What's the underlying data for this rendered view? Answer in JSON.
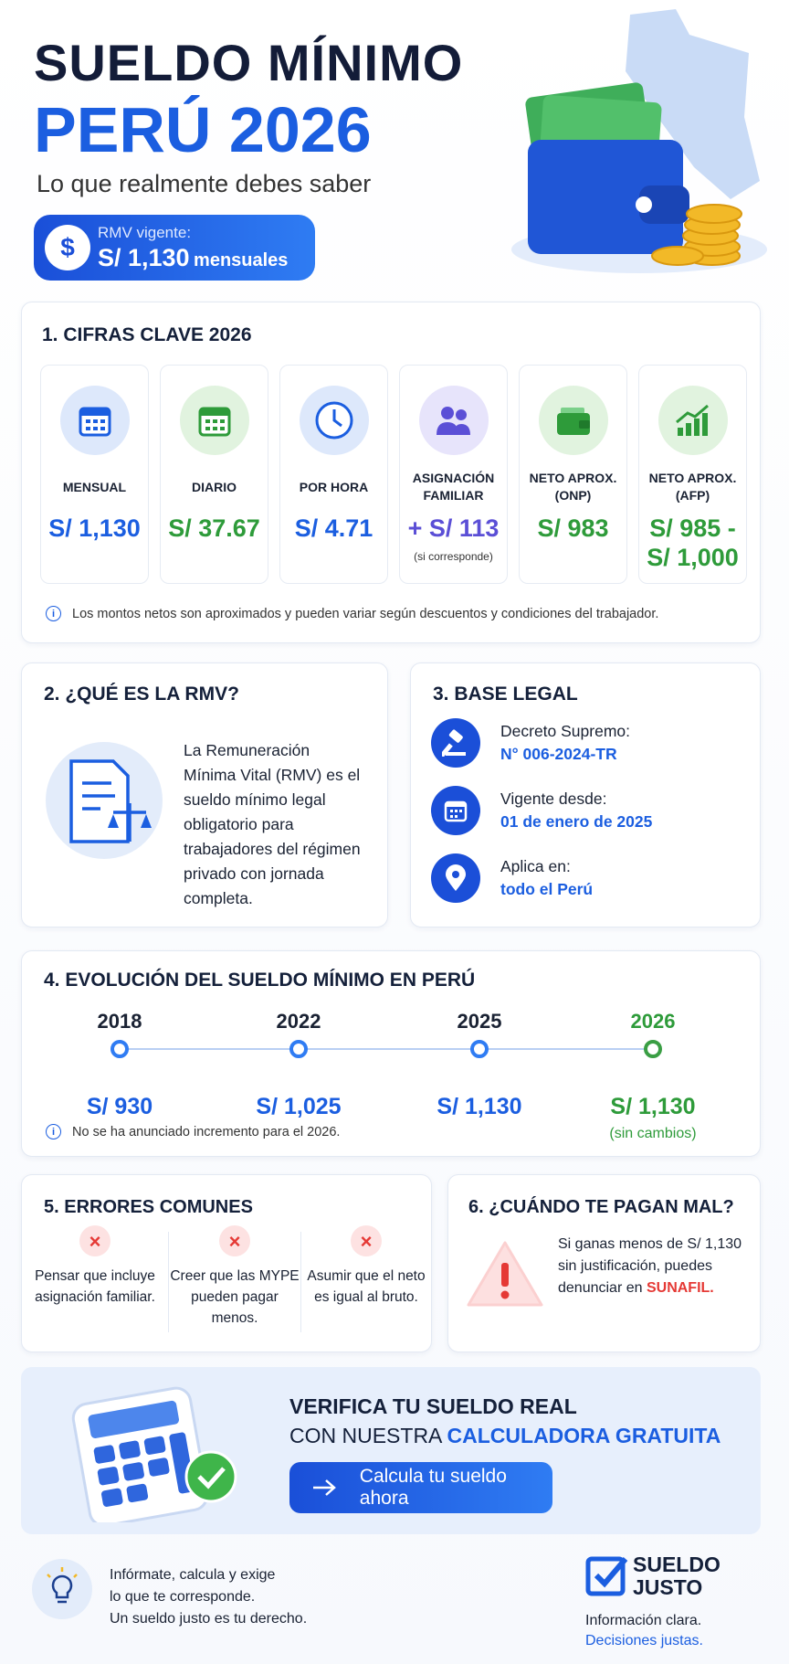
{
  "header": {
    "title_line1": "SUELDO MÍNIMO",
    "title_line2": "PERÚ 2026",
    "subtitle": "Lo que realmente debes saber",
    "badge_label": "RMV vigente:",
    "badge_amount": "S/ 1,130",
    "badge_unit": "mensuales"
  },
  "key_figures": {
    "title": "1. CIFRAS CLAVE 2026",
    "cards": [
      {
        "label": "MENSUAL",
        "value": "S/ 1,130"
      },
      {
        "label": "DIARIO",
        "value": "S/ 37.67"
      },
      {
        "label": "POR HORA",
        "value": "S/ 4.71"
      },
      {
        "label": "ASIGNACIÓN FAMILIAR",
        "value": "+ S/ 113",
        "note": "(si corresponde)"
      },
      {
        "label": "NETO APROX. (ONP)",
        "value": "S/ 983"
      },
      {
        "label": "NETO APROX. (AFP)",
        "value": "S/ 985 - S/ 1,000"
      }
    ],
    "note": "Los montos netos son aproximados y pueden variar según descuentos y condiciones del trabajador."
  },
  "what_is": {
    "title": "2. ¿QUÉ ES LA RMV?",
    "text": "La Remuneración Mínima Vital (RMV) es el sueldo mínimo legal obligatorio para trabajadores del régimen privado con jornada completa."
  },
  "legal": {
    "title": "3. BASE LEGAL",
    "items": [
      {
        "label": "Decreto Supremo:",
        "value": "N° 006-2024-TR"
      },
      {
        "label": "Vigente desde:",
        "value": "01 de enero de 2025"
      },
      {
        "label": "Aplica en:",
        "value": "todo el Perú"
      }
    ]
  },
  "evolution": {
    "title": "4. EVOLUCIÓN DEL SUELDO MÍNIMO EN PERÚ",
    "points": [
      {
        "year": "2018",
        "amount": "S/ 930"
      },
      {
        "year": "2022",
        "amount": "S/ 1,025"
      },
      {
        "year": "2025",
        "amount": "S/ 1,130"
      },
      {
        "year": "2026",
        "amount": "S/ 1,130",
        "note": "(sin cambios)"
      }
    ],
    "note": "No se ha anunciado incremento para el 2026."
  },
  "errors": {
    "title": "5. ERRORES COMUNES",
    "items": [
      "Pensar que incluye asignación familiar.",
      "Creer que las MYPE pueden pagar menos.",
      "Asumir que el neto es igual al bruto."
    ]
  },
  "bad_pay": {
    "title": "6. ¿CUÁNDO TE PAGAN MAL?",
    "text": "Si ganas menos de S/ 1,130 sin justificación, puedes denunciar en",
    "highlight": "SUNAFIL."
  },
  "cta": {
    "title_line1": "VERIFICA TU SUELDO REAL",
    "title_line2_prefix": "CON NUESTRA",
    "title_line2_highlight": "CALCULADORA GRATUITA",
    "button": "Calcula tu sueldo ahora"
  },
  "footer": {
    "message_lines": [
      "Infórmate, calcula y exige",
      "lo que te corresponde.",
      "Un sueldo justo es tu derecho."
    ],
    "brand_lines": [
      "SUELDO",
      "JUSTO"
    ],
    "tagline_lines": [
      "Información clara.",
      "Decisiones justas."
    ]
  }
}
